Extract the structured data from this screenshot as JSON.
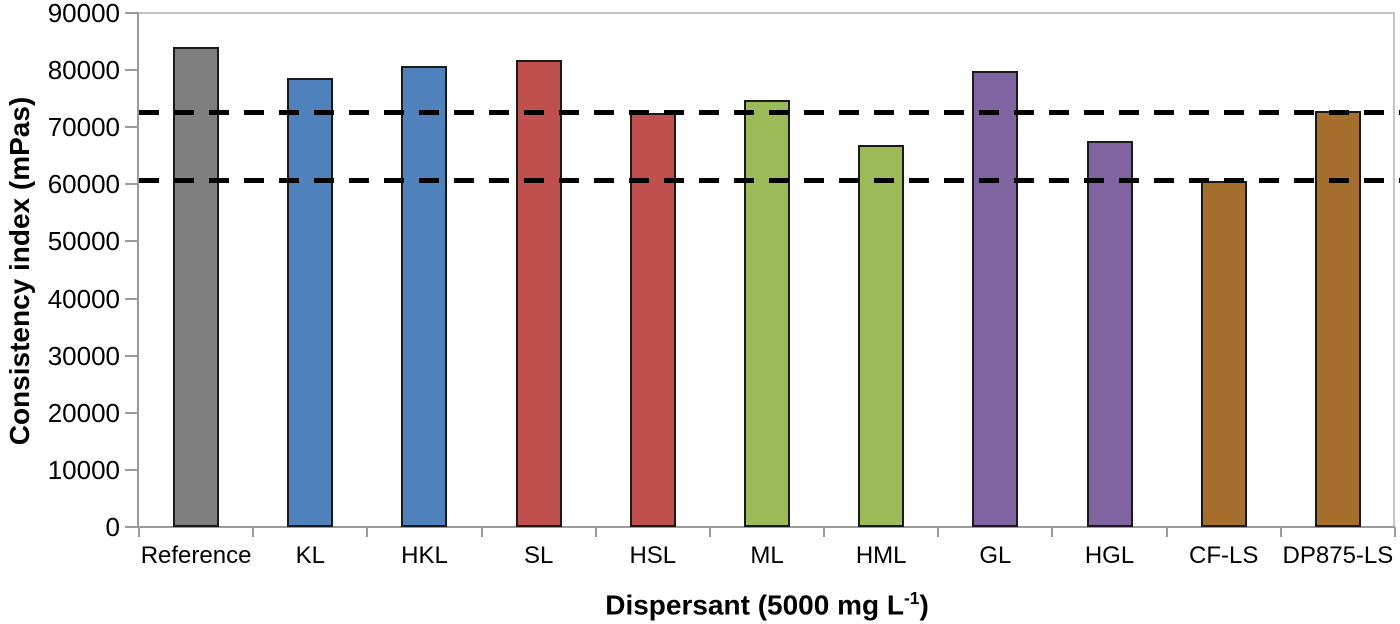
{
  "chart_data": {
    "type": "bar",
    "title": "",
    "categories": [
      "Reference",
      "KL",
      "HKL",
      "SL",
      "HSL",
      "ML",
      "HML",
      "GL",
      "HGL",
      "CF-LS",
      "DP875-LS"
    ],
    "values": [
      84000,
      78600,
      80800,
      81700,
      72500,
      74800,
      66800,
      79900,
      67600,
      60600,
      72800
    ],
    "bar_colors": [
      "#7f7f7f",
      "#4f81bd",
      "#4f81bd",
      "#c0504d",
      "#c0504d",
      "#9bbb59",
      "#9bbb59",
      "#8064a2",
      "#8064a2",
      "#a76f2d",
      "#a76f2d"
    ],
    "bar_border_color": "#1a1a1a",
    "ylabel": "Consistency index (mPas)",
    "xlabel": "Dispersant (5000 mg L⁻¹)",
    "xlabel_parts": {
      "prefix": "Dispersant (5000 mg L",
      "superscript": "-1",
      "suffix": ")"
    },
    "ylim": [
      0,
      90000
    ],
    "ytick_step": 10000,
    "ytick_labels": [
      "0",
      "10000",
      "20000",
      "30000",
      "40000",
      "50000",
      "60000",
      "70000",
      "80000",
      "90000"
    ],
    "reference_lines": {
      "style": "dashed",
      "color": "#000000",
      "values": [
        72700,
        60700
      ]
    },
    "grid": false,
    "legend": false,
    "colors_legend": {
      "reference": "#7f7f7f",
      "kraft_lignin": "#4f81bd",
      "soda_lignin": "#c0504d",
      "organosolv_lignin": "#9bbb59",
      "hydrolysis_lignin": "#8064a2",
      "lignosulfonate": "#a76f2d"
    }
  }
}
